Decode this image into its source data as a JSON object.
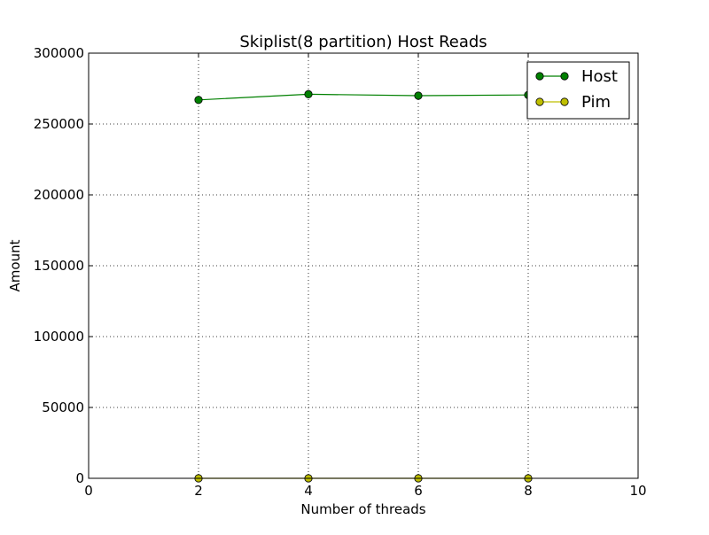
{
  "chart_data": {
    "type": "line",
    "title": "Skiplist(8 partition) Host Reads",
    "xlabel": "Number of threads",
    "ylabel": "Amount",
    "xlim": [
      0,
      10
    ],
    "ylim": [
      0,
      300000
    ],
    "xticks": [
      0,
      2,
      4,
      6,
      8,
      10
    ],
    "yticks": [
      0,
      50000,
      100000,
      150000,
      200000,
      250000,
      300000
    ],
    "grid": true,
    "legend_position": "top-right",
    "x": [
      2,
      4,
      6,
      8
    ],
    "series": [
      {
        "name": "Host",
        "color": "#008000",
        "values": [
          267000,
          271000,
          270000,
          270500
        ]
      },
      {
        "name": "Pim",
        "color": "#bfbf00",
        "values": [
          0,
          0,
          0,
          0
        ]
      }
    ]
  }
}
